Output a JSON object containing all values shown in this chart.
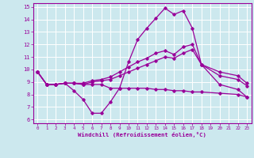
{
  "title": "",
  "xlabel": "Windchill (Refroidissement éolien,°C)",
  "background_color": "#cce8ee",
  "grid_color": "#ffffff",
  "line_color": "#990099",
  "x_ticks": [
    0,
    1,
    2,
    3,
    4,
    5,
    6,
    7,
    8,
    9,
    10,
    11,
    12,
    13,
    14,
    15,
    16,
    17,
    18,
    19,
    20,
    21,
    22,
    23
  ],
  "y_ticks": [
    6,
    7,
    8,
    9,
    10,
    11,
    12,
    13,
    14,
    15
  ],
  "xlim": [
    -0.5,
    23.5
  ],
  "ylim": [
    5.7,
    15.3
  ],
  "series": [
    {
      "x": [
        0,
        1,
        2,
        3,
        4,
        5,
        6,
        7,
        8,
        9,
        10,
        11,
        12,
        13,
        14,
        15,
        16,
        17,
        18,
        20,
        22,
        23
      ],
      "y": [
        9.8,
        8.8,
        8.8,
        8.9,
        8.3,
        7.6,
        6.5,
        6.5,
        7.4,
        8.5,
        10.6,
        12.4,
        13.3,
        14.1,
        14.9,
        14.4,
        14.7,
        13.3,
        10.4,
        8.8,
        8.4,
        7.8
      ]
    },
    {
      "x": [
        0,
        1,
        2,
        3,
        4,
        5,
        6,
        7,
        8,
        9,
        10,
        11,
        12,
        13,
        14,
        15,
        16,
        17,
        18,
        20,
        22,
        23
      ],
      "y": [
        9.8,
        8.8,
        8.8,
        8.9,
        8.9,
        8.8,
        8.8,
        8.8,
        8.5,
        8.5,
        8.5,
        8.5,
        8.5,
        8.4,
        8.4,
        8.3,
        8.3,
        8.2,
        8.2,
        8.1,
        8.0,
        7.8
      ]
    },
    {
      "x": [
        0,
        1,
        2,
        3,
        4,
        5,
        6,
        7,
        8,
        9,
        10,
        11,
        12,
        13,
        14,
        15,
        16,
        17,
        18,
        20,
        22,
        23
      ],
      "y": [
        9.8,
        8.8,
        8.8,
        8.9,
        8.9,
        8.8,
        9.0,
        9.1,
        9.2,
        9.5,
        9.8,
        10.1,
        10.4,
        10.7,
        11.0,
        10.9,
        11.3,
        11.6,
        10.4,
        9.5,
        9.2,
        8.7
      ]
    },
    {
      "x": [
        0,
        1,
        2,
        3,
        4,
        5,
        6,
        7,
        8,
        9,
        10,
        11,
        12,
        13,
        14,
        15,
        16,
        17,
        18,
        20,
        22,
        23
      ],
      "y": [
        9.8,
        8.8,
        8.8,
        8.9,
        8.9,
        8.9,
        9.1,
        9.2,
        9.4,
        9.8,
        10.2,
        10.6,
        10.9,
        11.3,
        11.5,
        11.2,
        11.8,
        12.0,
        10.4,
        9.8,
        9.5,
        8.9
      ]
    }
  ]
}
